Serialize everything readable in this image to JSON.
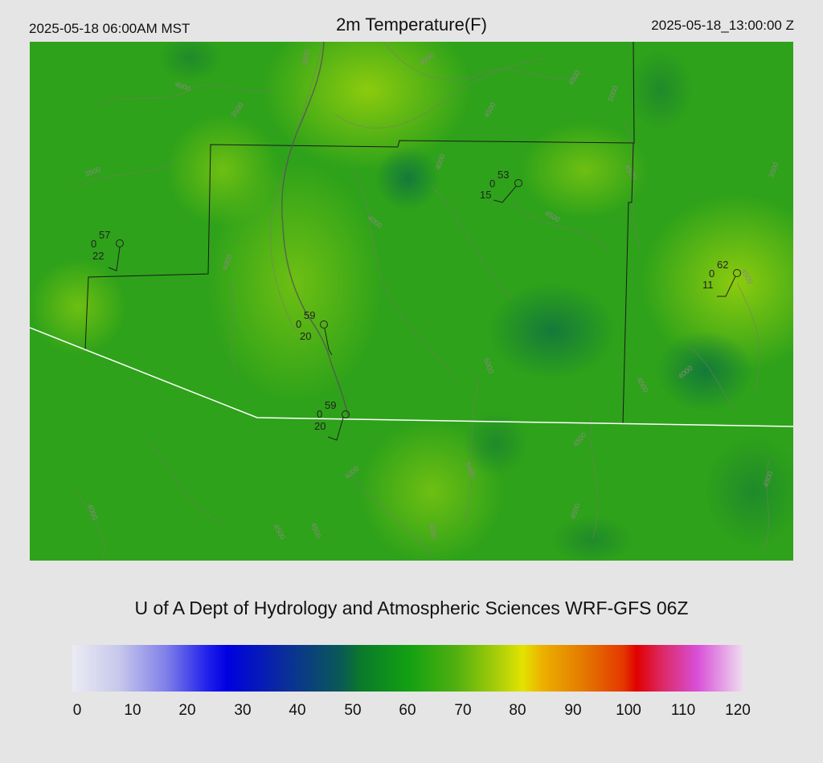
{
  "header": {
    "local_time": "2025-05-18 06:00AM MST",
    "title": "2m Temperature(F)",
    "valid_time": "2025-05-18_13:00:00 Z"
  },
  "credit": "U of A Dept of Hydrology and Atmospheric Sciences WRF-GFS 06Z",
  "colorbar": {
    "ticks": [
      "0",
      "10",
      "20",
      "30",
      "40",
      "50",
      "60",
      "70",
      "80",
      "90",
      "100",
      "110",
      "120"
    ]
  },
  "stations": [
    {
      "temp": "57",
      "precip": "0",
      "dew": "22"
    },
    {
      "temp": "53",
      "precip": "0",
      "dew": "15"
    },
    {
      "temp": "62",
      "precip": "0",
      "dew": "11"
    },
    {
      "temp": "59",
      "precip": "0",
      "dew": "20"
    },
    {
      "temp": "59",
      "precip": "0",
      "dew": "20"
    }
  ],
  "contour_labels": [
    "3000",
    "3500",
    "4000",
    "4500",
    "5000",
    "3500",
    "4000",
    "4500",
    "4000",
    "4500",
    "3500",
    "4000",
    "4500",
    "4000",
    "4500",
    "5000",
    "4500",
    "4000",
    "4500",
    "4000",
    "5000",
    "4500",
    "4000",
    "4500",
    "4500",
    "4000",
    "4500"
  ],
  "colors": {
    "background": "#e5e5e5",
    "map_green": "#2ea21a",
    "border_white": "#ffffff"
  }
}
